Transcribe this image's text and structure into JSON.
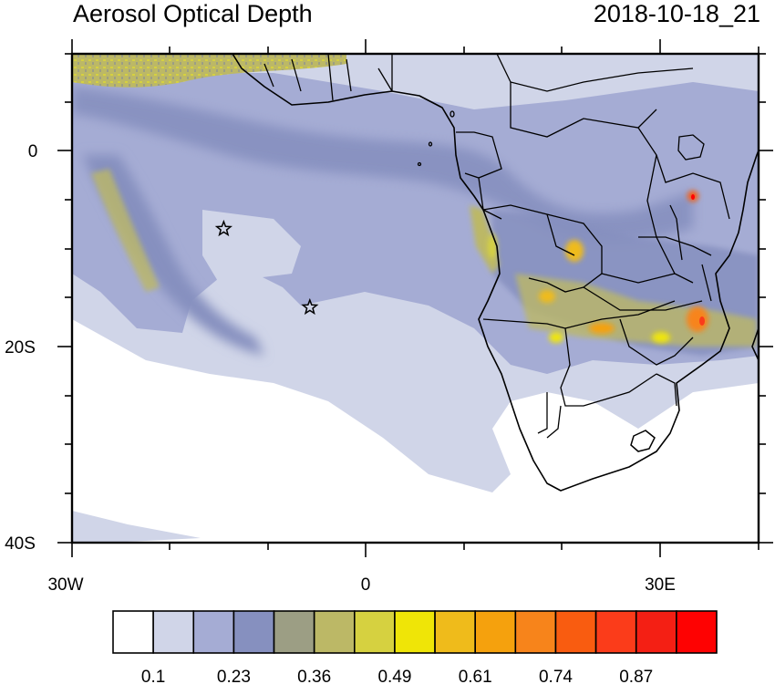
{
  "title": "Aerosol Optical Depth",
  "timestamp": "2018-10-18_21",
  "axes": {
    "lat_labels": [
      "0",
      "20S",
      "40S"
    ],
    "lon_labels": [
      "30W",
      "0",
      "30E"
    ]
  },
  "colorbar": {
    "colors": [
      "#ffffff",
      "#d0d5e8",
      "#a5acd4",
      "#8690bf",
      "#9c9e84",
      "#bcb866",
      "#d6d140",
      "#efe507",
      "#efbb1b",
      "#f5a10d",
      "#f7841b",
      "#f95c10",
      "#fb3c1a",
      "#f41f14",
      "#fe0202"
    ],
    "tick_labels": [
      "0.1",
      "0.23",
      "0.36",
      "0.49",
      "0.61",
      "0.74",
      "0.87"
    ]
  },
  "markers": [
    {
      "name": "star-marker-1",
      "lon": -14.5,
      "lat": -8
    },
    {
      "name": "star-marker-2",
      "lon": -5.7,
      "lat": -16
    }
  ]
}
